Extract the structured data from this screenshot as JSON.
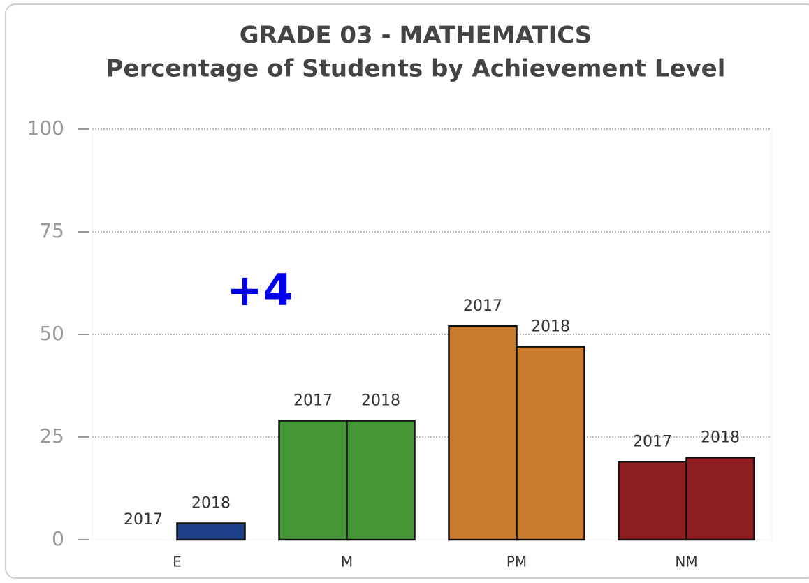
{
  "chart_data": {
    "type": "bar",
    "title": "GRADE 03 - MATHEMATICS",
    "subtitle": "Percentage of Students by Achievement Level",
    "annotation": "+4",
    "categories": [
      "E",
      "M",
      "PM",
      "NM"
    ],
    "category_colors": [
      "#1d3f87",
      "#459636",
      "#c97a2c",
      "#8e1e22"
    ],
    "series": [
      {
        "name": "2017",
        "values": [
          0,
          29,
          52,
          19
        ]
      },
      {
        "name": "2018",
        "values": [
          4,
          29,
          47,
          20
        ]
      }
    ],
    "ylim": [
      0,
      100
    ],
    "yticks": [
      0,
      25,
      50,
      75,
      100
    ],
    "grid": true
  }
}
